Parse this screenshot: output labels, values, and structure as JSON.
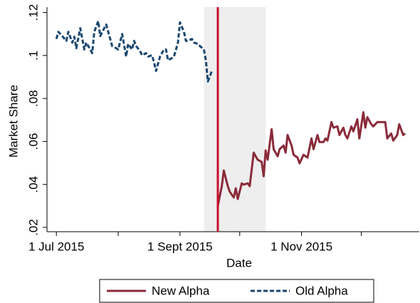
{
  "chart_data": {
    "type": "line",
    "xlabel": "Date",
    "ylabel": "Market Share",
    "xlim": [
      "2015-06-27",
      "2015-12-30"
    ],
    "ylim": [
      0.018,
      0.1225
    ],
    "xticks": [
      {
        "value": "2015-07-01",
        "label": "1 Jul 2015"
      },
      {
        "value": "2015-08-01",
        "label": null
      },
      {
        "value": "2015-09-01",
        "label": "1 Sept 2015"
      },
      {
        "value": "2015-10-01",
        "label": null
      },
      {
        "value": "2015-11-01",
        "label": "1 Nov 2015"
      },
      {
        "value": "2015-12-01",
        "label": null
      }
    ],
    "yticks": [
      {
        "value": 0.02,
        "label": ".02"
      },
      {
        "value": 0.04,
        "label": ".04"
      },
      {
        "value": 0.06,
        "label": ".06"
      },
      {
        "value": 0.08,
        "label": ".08"
      },
      {
        "value": 0.1,
        "label": ".1"
      },
      {
        "value": 0.12,
        "label": ".12"
      }
    ],
    "shaded": [
      "2015-09-13",
      "2015-10-14"
    ],
    "shaded_color": "#eeeeee",
    "vline": {
      "x": "2015-09-20",
      "color": "#c8102e"
    },
    "legend": "bottom",
    "series": [
      {
        "name": "New Alpha",
        "color": "#8b2b3a",
        "style": "solid",
        "x": [
          "2015-09-20",
          "2015-09-22",
          "2015-09-23",
          "2015-09-25",
          "2015-09-26",
          "2015-09-28",
          "2015-09-29",
          "2015-09-30",
          "2015-10-02",
          "2015-10-03",
          "2015-10-05",
          "2015-10-06",
          "2015-10-08",
          "2015-10-09",
          "2015-10-10",
          "2015-10-12",
          "2015-10-13",
          "2015-10-14",
          "2015-10-15",
          "2015-10-17",
          "2015-10-18",
          "2015-10-20",
          "2015-10-21",
          "2015-10-23",
          "2015-10-24",
          "2015-10-25",
          "2015-10-27",
          "2015-10-28",
          "2015-10-30",
          "2015-10-31",
          "2015-11-02",
          "2015-11-03",
          "2015-11-04",
          "2015-11-06",
          "2015-11-07",
          "2015-11-09",
          "2015-11-10",
          "2015-11-12",
          "2015-11-13",
          "2015-11-14",
          "2015-11-16",
          "2015-11-17",
          "2015-11-19",
          "2015-11-20",
          "2015-11-22",
          "2015-11-23",
          "2015-11-24",
          "2015-11-26",
          "2015-11-27",
          "2015-11-29",
          "2015-11-30",
          "2015-12-02",
          "2015-12-03",
          "2015-12-04",
          "2015-12-06",
          "2015-12-07",
          "2015-12-09",
          "2015-12-10",
          "2015-12-12",
          "2015-12-13",
          "2015-12-14",
          "2015-12-16",
          "2015-12-17",
          "2015-12-19",
          "2015-12-20",
          "2015-12-22",
          "2015-12-23"
        ],
        "values": [
          0.03,
          0.0392,
          0.0465,
          0.0392,
          0.0366,
          0.0339,
          0.0382,
          0.0332,
          0.0405,
          0.0399,
          0.0405,
          0.0392,
          0.0548,
          0.0531,
          0.0515,
          0.0505,
          0.0438,
          0.0558,
          0.0515,
          0.0657,
          0.0564,
          0.0531,
          0.0564,
          0.0581,
          0.0548,
          0.063,
          0.0581,
          0.0538,
          0.0525,
          0.0498,
          0.0538,
          0.0531,
          0.0525,
          0.0614,
          0.0564,
          0.063,
          0.0597,
          0.0597,
          0.0614,
          0.0604,
          0.069,
          0.0664,
          0.067,
          0.063,
          0.0664,
          0.063,
          0.0614,
          0.067,
          0.0647,
          0.0703,
          0.0614,
          0.0736,
          0.0664,
          0.0713,
          0.068,
          0.067,
          0.069,
          0.069,
          0.069,
          0.069,
          0.0614,
          0.0637,
          0.0604,
          0.063,
          0.068,
          0.063,
          0.0637
        ]
      },
      {
        "name": "Old Alpha",
        "color": "#1a476f",
        "style": "dashed",
        "x": [
          "2015-07-01",
          "2015-07-02",
          "2015-07-04",
          "2015-07-06",
          "2015-07-07",
          "2015-07-09",
          "2015-07-10",
          "2015-07-11",
          "2015-07-13",
          "2015-07-15",
          "2015-07-16",
          "2015-07-17",
          "2015-07-19",
          "2015-07-20",
          "2015-07-22",
          "2015-07-23",
          "2015-07-25",
          "2015-07-26",
          "2015-07-28",
          "2015-07-29",
          "2015-07-31",
          "2015-08-01",
          "2015-08-03",
          "2015-08-05",
          "2015-08-06",
          "2015-08-08",
          "2015-08-09",
          "2015-08-10",
          "2015-08-12",
          "2015-08-13",
          "2015-08-15",
          "2015-08-16",
          "2015-08-18",
          "2015-08-19",
          "2015-08-20",
          "2015-08-22",
          "2015-08-24",
          "2015-08-25",
          "2015-08-26",
          "2015-08-28",
          "2015-08-29",
          "2015-08-31",
          "2015-09-01",
          "2015-09-03",
          "2015-09-04",
          "2015-09-05",
          "2015-09-07",
          "2015-09-08",
          "2015-09-10",
          "2015-09-11",
          "2015-09-13",
          "2015-09-14",
          "2015-09-15",
          "2015-09-17"
        ],
        "values": [
          0.1077,
          0.111,
          0.109,
          0.1068,
          0.111,
          0.106,
          0.1087,
          0.1034,
          0.1127,
          0.1028,
          0.106,
          0.1044,
          0.1011,
          0.111,
          0.116,
          0.109,
          0.1127,
          0.1144,
          0.1077,
          0.1044,
          0.1034,
          0.1028,
          0.11,
          0.0995,
          0.1054,
          0.1028,
          0.1068,
          0.1044,
          0.102,
          0.1001,
          0.1011,
          0.0995,
          0.1001,
          0.0968,
          0.0928,
          0.0995,
          0.1028,
          0.1028,
          0.0978,
          0.0988,
          0.0995,
          0.106,
          0.1154,
          0.111,
          0.1068,
          0.1068,
          0.1077,
          0.106,
          0.1054,
          0.1044,
          0.1028,
          0.0978,
          0.0879,
          0.0928
        ]
      }
    ]
  }
}
